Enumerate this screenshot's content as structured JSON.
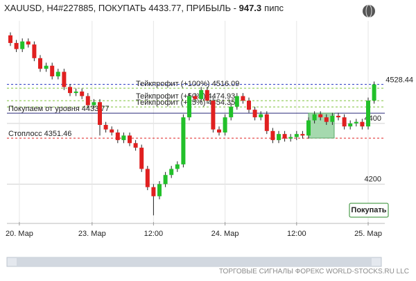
{
  "chart_data": {
    "type": "candlestick",
    "title": "XAUUSD, H4#227885, ПОКУПАТЬ 4433.77, ПРИБЫЛЬ - ",
    "profit": 947.3,
    "profit_unit": "пипс",
    "button": "Покупать",
    "footer": "ТОРГОВЫЕ СИГНАЛЫ ФОРЕКС WORLD-STOCKS.RU LLC",
    "up_color": "#22c02a",
    "down_color": "#e02020",
    "ylim": [
      4075,
      4738
    ],
    "yticks": [
      4200,
      4400
    ],
    "xticks": [
      {
        "value": 1.5,
        "label": "20. Мар"
      },
      {
        "value": 13.7,
        "label": "23. Мар"
      },
      {
        "value": 24,
        "label": "12:00"
      },
      {
        "value": 36,
        "label": "24. Мар"
      },
      {
        "value": 48,
        "label": "12:00"
      },
      {
        "value": 60,
        "label": "25. Мар"
      }
    ],
    "open": [
      4690,
      4665,
      4645,
      4670,
      4660,
      4615,
      4580,
      4590,
      4555,
      4570,
      4520,
      4500,
      4505,
      4490,
      4460,
      4470,
      4395,
      4380,
      4370,
      4345,
      4360,
      4335,
      4320,
      4250,
      4190,
      4160,
      4200,
      4230,
      4250,
      4265,
      4420,
      4490,
      4480,
      4510,
      4475,
      4380,
      4370,
      4420,
      4455,
      4490,
      4475,
      4445,
      4420,
      4430,
      4375,
      4345,
      4365,
      4350,
      4355,
      4365,
      4360,
      4410,
      4430,
      4420,
      4405,
      4425,
      4420,
      4390,
      4400,
      4405,
      4390,
      4475
    ],
    "high": [
      4700,
      4675,
      4680,
      4680,
      4670,
      4625,
      4600,
      4600,
      4580,
      4580,
      4530,
      4515,
      4515,
      4500,
      4480,
      4480,
      4405,
      4390,
      4380,
      4370,
      4370,
      4345,
      4330,
      4260,
      4200,
      4210,
      4240,
      4260,
      4275,
      4430,
      4500,
      4500,
      4520,
      4520,
      4485,
      4390,
      4430,
      4465,
      4500,
      4500,
      4485,
      4455,
      4440,
      4440,
      4385,
      4375,
      4375,
      4365,
      4375,
      4375,
      4420,
      4440,
      4440,
      4430,
      4435,
      4435,
      4430,
      4410,
      4415,
      4415,
      4485,
      4538
    ],
    "low": [
      4655,
      4635,
      4635,
      4650,
      4605,
      4570,
      4570,
      4545,
      4545,
      4510,
      4490,
      4490,
      4480,
      4450,
      4450,
      4360,
      4370,
      4360,
      4335,
      4335,
      4325,
      4310,
      4240,
      4180,
      4097,
      4150,
      4190,
      4220,
      4240,
      4255,
      4410,
      4470,
      4470,
      4465,
      4370,
      4360,
      4360,
      4410,
      4445,
      4465,
      4435,
      4410,
      4410,
      4365,
      4335,
      4335,
      4340,
      4340,
      4345,
      4350,
      4350,
      4400,
      4410,
      4395,
      4395,
      4410,
      4380,
      4380,
      4390,
      4380,
      4380,
      4465
    ],
    "close": [
      4665,
      4645,
      4670,
      4660,
      4615,
      4580,
      4590,
      4555,
      4570,
      4520,
      4500,
      4505,
      4490,
      4460,
      4470,
      4395,
      4380,
      4370,
      4345,
      4360,
      4335,
      4320,
      4250,
      4190,
      4160,
      4200,
      4230,
      4250,
      4265,
      4420,
      4490,
      4480,
      4510,
      4475,
      4380,
      4370,
      4420,
      4455,
      4490,
      4475,
      4445,
      4420,
      4430,
      4375,
      4345,
      4365,
      4350,
      4355,
      4365,
      4360,
      4410,
      4430,
      4420,
      4405,
      4425,
      4420,
      4390,
      4400,
      4405,
      4390,
      4475,
      4528.44
    ],
    "levels": [
      {
        "label": "Тейкпрофит (+100%) 4516.09",
        "value": 4516.09,
        "color": "#7cc23a",
        "dash": true,
        "side": "mid"
      },
      {
        "label": "Тейкпрофит (+50%) 4474.93",
        "value": 4474.93,
        "color": "#7cc23a",
        "dash": true,
        "side": "mid"
      },
      {
        "label": "Тейкпрофит (+25%) 4454.35",
        "value": 4454.35,
        "color": "#7cc23a",
        "dash": true,
        "side": "mid"
      },
      {
        "label": "Покупаем от уровня 4433.77",
        "value": 4433.77,
        "color": "#2a2a7a",
        "dash": false,
        "side": "left"
      },
      {
        "label": "Стоплосс 4351.46",
        "value": 4351.46,
        "color": "#e02020",
        "dash": true,
        "side": "left"
      },
      {
        "label": "4528.44",
        "value": 4528.44,
        "color": "#2030c0",
        "dash": true,
        "side": "right"
      }
    ]
  }
}
